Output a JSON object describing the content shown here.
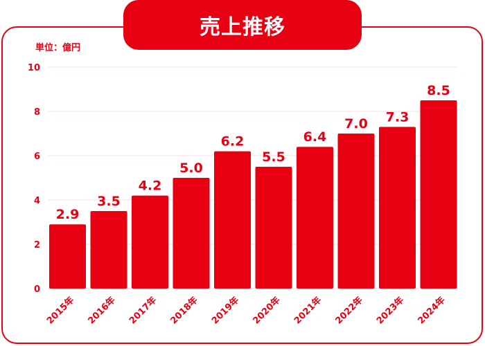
{
  "title": "売上推移",
  "unit_label": "単位：億円",
  "colors": {
    "accent": "#e60012",
    "grid": "#f4dde0"
  },
  "chart_data": {
    "type": "bar",
    "title": "売上推移",
    "ylabel": "単位：億円",
    "xlabel": "",
    "categories": [
      "2015年",
      "2016年",
      "2017年",
      "2018年",
      "2019年",
      "2020年",
      "2021年",
      "2022年",
      "2023年",
      "2024年"
    ],
    "values": [
      2.9,
      3.5,
      4.2,
      5.0,
      6.2,
      5.5,
      6.4,
      7.0,
      7.3,
      8.5
    ],
    "data_labels": [
      "2.9",
      "3.5",
      "4.2",
      "5.0",
      "6.2",
      "5.5",
      "6.4",
      "7.0",
      "7.3",
      "8.5"
    ],
    "ylim": [
      0,
      10
    ],
    "yticks": [
      0,
      2,
      4,
      6,
      8,
      10
    ],
    "grid": true,
    "legend": "none"
  }
}
